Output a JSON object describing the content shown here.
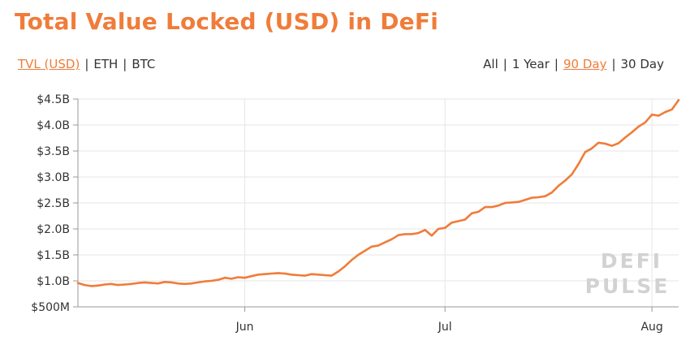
{
  "header": {
    "title": "Total Value Locked (USD) in DeFi"
  },
  "metric_toggles": [
    {
      "label": "TVL (USD)",
      "active": true
    },
    {
      "label": "ETH",
      "active": false
    },
    {
      "label": "BTC",
      "active": false
    }
  ],
  "range_toggles": [
    {
      "label": "All",
      "active": false
    },
    {
      "label": "1 Year",
      "active": false
    },
    {
      "label": "90 Day",
      "active": true
    },
    {
      "label": "30 Day",
      "active": false
    }
  ],
  "separator": "|",
  "watermark": {
    "line1": "DEFI",
    "line2": "PULSE"
  },
  "colors": {
    "accent": "#f07c3a",
    "line": "#f07c3a",
    "grid": "#e6e6e6",
    "text": "#333333"
  },
  "chart_data": {
    "type": "line",
    "title": "Total Value Locked (USD) in DeFi",
    "xlabel": "",
    "ylabel": "",
    "grid": true,
    "ylim": [
      0.5,
      4.5
    ],
    "yticks": [
      {
        "value": 4.5,
        "label": "$4.5B"
      },
      {
        "value": 4.0,
        "label": "$4.0B"
      },
      {
        "value": 3.5,
        "label": "$3.5B"
      },
      {
        "value": 3.0,
        "label": "$3.0B"
      },
      {
        "value": 2.5,
        "label": "$2.5B"
      },
      {
        "value": 2.0,
        "label": "$2.0B"
      },
      {
        "value": 1.5,
        "label": "$1.5B"
      },
      {
        "value": 1.0,
        "label": "$1.0B"
      },
      {
        "value": 0.5,
        "label": "$500M"
      }
    ],
    "xlim": [
      "2020-05-07",
      "2020-08-05"
    ],
    "xticks": [
      {
        "date": "2020-06-01",
        "label": "Jun"
      },
      {
        "date": "2020-07-01",
        "label": "Jul"
      },
      {
        "date": "2020-08-01",
        "label": "Aug"
      }
    ],
    "series": [
      {
        "x": [
          "2020-05-07",
          "2020-05-08",
          "2020-05-09",
          "2020-05-10",
          "2020-05-11",
          "2020-05-12",
          "2020-05-13",
          "2020-05-14",
          "2020-05-15",
          "2020-05-16",
          "2020-05-17",
          "2020-05-18",
          "2020-05-19",
          "2020-05-20",
          "2020-05-21",
          "2020-05-22",
          "2020-05-23",
          "2020-05-24",
          "2020-05-25",
          "2020-05-26",
          "2020-05-27",
          "2020-05-28",
          "2020-05-29",
          "2020-05-30",
          "2020-05-31",
          "2020-06-01",
          "2020-06-02",
          "2020-06-03",
          "2020-06-04",
          "2020-06-05",
          "2020-06-06",
          "2020-06-07",
          "2020-06-08",
          "2020-06-09",
          "2020-06-10",
          "2020-06-11",
          "2020-06-12",
          "2020-06-13",
          "2020-06-14",
          "2020-06-15",
          "2020-06-16",
          "2020-06-17",
          "2020-06-18",
          "2020-06-19",
          "2020-06-20",
          "2020-06-21",
          "2020-06-22",
          "2020-06-23",
          "2020-06-24",
          "2020-06-25",
          "2020-06-26",
          "2020-06-27",
          "2020-06-28",
          "2020-06-29",
          "2020-06-30",
          "2020-07-01",
          "2020-07-02",
          "2020-07-03",
          "2020-07-04",
          "2020-07-05",
          "2020-07-06",
          "2020-07-07",
          "2020-07-08",
          "2020-07-09",
          "2020-07-10",
          "2020-07-11",
          "2020-07-12",
          "2020-07-13",
          "2020-07-14",
          "2020-07-15",
          "2020-07-16",
          "2020-07-17",
          "2020-07-18",
          "2020-07-19",
          "2020-07-20",
          "2020-07-21",
          "2020-07-22",
          "2020-07-23",
          "2020-07-24",
          "2020-07-25",
          "2020-07-26",
          "2020-07-27",
          "2020-07-28",
          "2020-07-29",
          "2020-07-30",
          "2020-07-31",
          "2020-08-01",
          "2020-08-02",
          "2020-08-03",
          "2020-08-04",
          "2020-08-05"
        ],
        "values": [
          0.96,
          0.92,
          0.9,
          0.91,
          0.93,
          0.94,
          0.92,
          0.93,
          0.94,
          0.96,
          0.97,
          0.96,
          0.95,
          0.98,
          0.97,
          0.95,
          0.94,
          0.95,
          0.97,
          0.99,
          1.0,
          1.02,
          1.06,
          1.04,
          1.07,
          1.06,
          1.09,
          1.12,
          1.13,
          1.14,
          1.15,
          1.14,
          1.12,
          1.11,
          1.1,
          1.13,
          1.12,
          1.11,
          1.1,
          1.18,
          1.28,
          1.4,
          1.5,
          1.58,
          1.66,
          1.68,
          1.74,
          1.8,
          1.88,
          1.9,
          1.9,
          1.92,
          1.98,
          1.87,
          2.0,
          2.02,
          2.12,
          2.15,
          2.18,
          2.3,
          2.33,
          2.42,
          2.42,
          2.45,
          2.5,
          2.51,
          2.52,
          2.56,
          2.6,
          2.61,
          2.63,
          2.7,
          2.83,
          2.93,
          3.05,
          3.25,
          3.48,
          3.55,
          3.66,
          3.64,
          3.6,
          3.65,
          3.76,
          3.86,
          3.97,
          4.05,
          4.2,
          4.18,
          4.25,
          4.3,
          4.48
        ]
      }
    ]
  }
}
